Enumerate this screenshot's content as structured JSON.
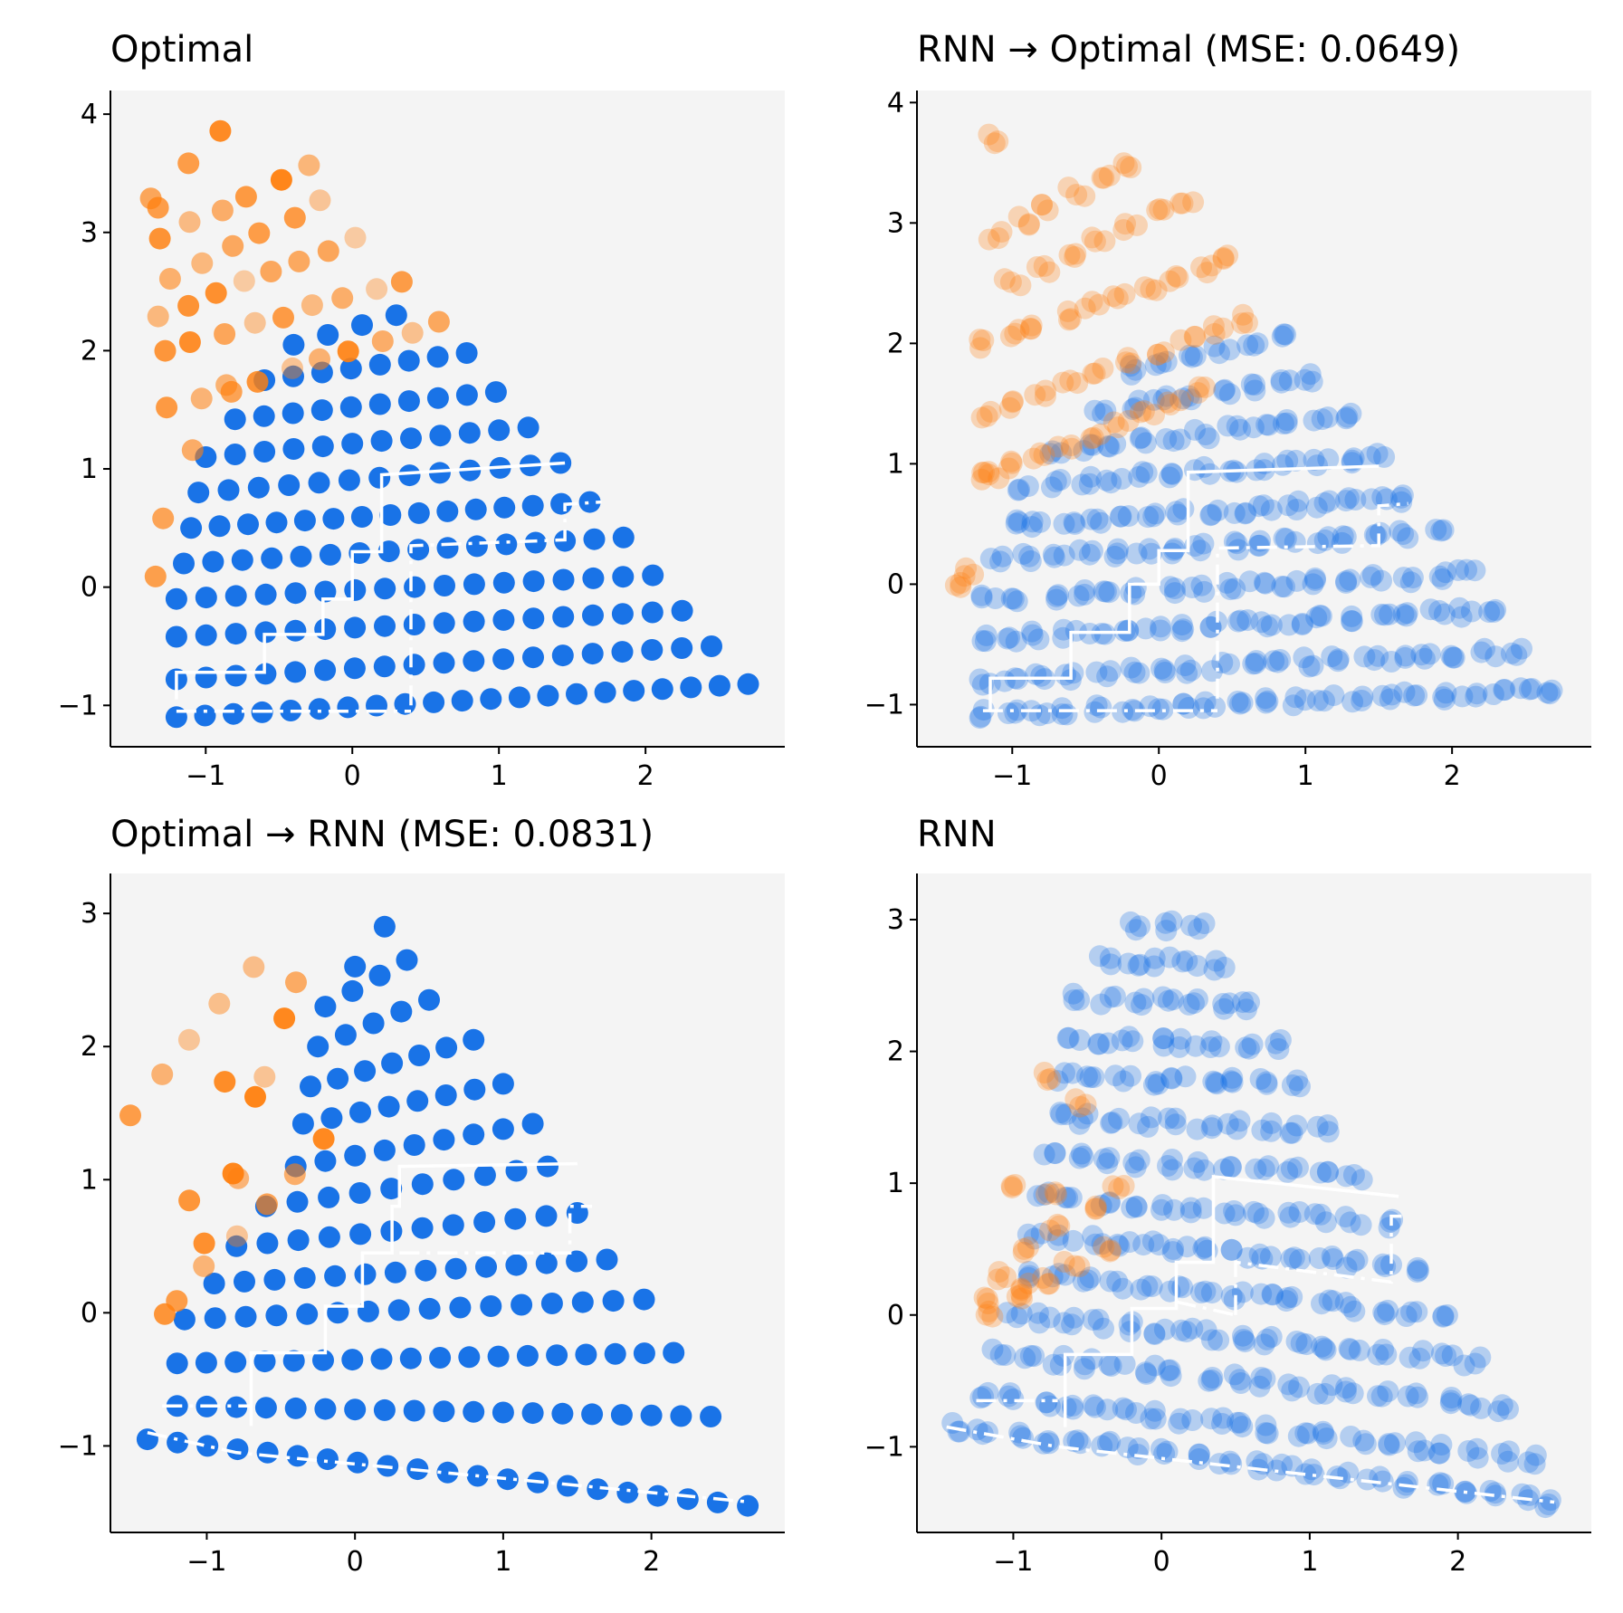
{
  "colors": {
    "orange": "#ff7f0e",
    "blue": "#0d6be6",
    "background": "#f4f4f4",
    "overlay": "#ffffff"
  },
  "chart_data": [
    {
      "type": "scatter",
      "title": "Optimal",
      "xlim": [
        -1.65,
        2.95
      ],
      "ylim": [
        -1.35,
        4.2
      ],
      "xticks": [
        -1,
        0,
        1,
        2
      ],
      "yticks": [
        -1,
        0,
        1,
        2,
        3,
        4
      ],
      "xtick_labels": [
        "−1",
        "0",
        "1",
        "2"
      ],
      "ytick_labels": [
        "−1",
        "0",
        "1",
        "2",
        "3",
        "4"
      ],
      "mode": "regular",
      "series": [
        {
          "name": "blue states",
          "color": "#0d6be6",
          "rows": [
            {
              "y0": -1.1,
              "y1": -0.82,
              "x0": -1.2,
              "x1": 2.7
            },
            {
              "y0": -0.78,
              "y1": -0.5,
              "x0": -1.2,
              "x1": 2.45
            },
            {
              "y0": -0.42,
              "y1": -0.2,
              "x0": -1.2,
              "x1": 2.25
            },
            {
              "y0": -0.1,
              "y1": 0.1,
              "x0": -1.2,
              "x1": 2.05
            },
            {
              "y0": 0.2,
              "y1": 0.42,
              "x0": -1.15,
              "x1": 1.85
            },
            {
              "y0": 0.5,
              "y1": 0.72,
              "x0": -1.1,
              "x1": 1.62
            },
            {
              "y0": 0.8,
              "y1": 1.05,
              "x0": -1.05,
              "x1": 1.42
            },
            {
              "y0": 1.1,
              "y1": 1.35,
              "x0": -1.0,
              "x1": 1.2
            },
            {
              "y0": 1.42,
              "y1": 1.65,
              "x0": -0.8,
              "x1": 0.98
            },
            {
              "y0": 1.75,
              "y1": 1.98,
              "x0": -0.6,
              "x1": 0.78
            },
            {
              "y0": 2.05,
              "y1": 2.3,
              "x0": -0.4,
              "x1": 0.3
            }
          ]
        },
        {
          "name": "orange states",
          "color": "#ff7f0e",
          "rows": [
            {
              "y0": 0.1,
              "y1": 3.2,
              "x0": -1.35,
              "x1": -1.35
            },
            {
              "y0": 1.5,
              "y1": 2.25,
              "x0": -1.25,
              "x1": 0.6
            },
            {
              "y0": 2.0,
              "y1": 2.6,
              "x0": -1.3,
              "x1": 0.35
            },
            {
              "y0": 2.3,
              "y1": 2.95,
              "x0": -1.3,
              "x1": 0.0
            },
            {
              "y0": 2.6,
              "y1": 3.25,
              "x0": -1.25,
              "x1": -0.2
            },
            {
              "y0": 2.95,
              "y1": 3.55,
              "x0": -1.3,
              "x1": -0.3
            },
            {
              "y0": 3.3,
              "y1": 3.85,
              "x0": -1.35,
              "x1": -0.9
            },
            {
              "y0": 0.6,
              "y1": 1.7,
              "x0": -1.3,
              "x1": -0.85
            }
          ]
        }
      ],
      "traces": [
        {
          "style": "solid",
          "points": [
            [
              -1.2,
              -0.95
            ],
            [
              -1.2,
              -0.72
            ],
            [
              -0.6,
              -0.72
            ],
            [
              -0.6,
              -0.4
            ],
            [
              -0.2,
              -0.4
            ],
            [
              -0.2,
              -0.1
            ],
            [
              0.0,
              -0.1
            ],
            [
              0.0,
              0.3
            ],
            [
              0.2,
              0.3
            ],
            [
              0.2,
              0.95
            ],
            [
              1.45,
              1.05
            ]
          ]
        },
        {
          "style": "dashdot",
          "points": [
            [
              -1.2,
              -1.05
            ],
            [
              0.4,
              -1.05
            ]
          ]
        },
        {
          "style": "dashdot",
          "points": [
            [
              0.4,
              -1.0
            ],
            [
              0.4,
              0.35
            ],
            [
              1.45,
              0.4
            ],
            [
              1.45,
              0.7
            ],
            [
              1.7,
              0.72
            ]
          ]
        }
      ]
    },
    {
      "type": "scatter",
      "title": "RNN → Optimal (MSE: 0.0649)",
      "xlim": [
        -1.65,
        2.95
      ],
      "ylim": [
        -1.35,
        4.1
      ],
      "xticks": [
        -1,
        0,
        1,
        2
      ],
      "yticks": [
        -1,
        0,
        1,
        2,
        3,
        4
      ],
      "xtick_labels": [
        "−1",
        "0",
        "1",
        "2"
      ],
      "ytick_labels": [
        "−1",
        "0",
        "1",
        "2",
        "3",
        "4"
      ],
      "mode": "smeared",
      "series": [
        {
          "name": "blue states",
          "color": "#0d6be6",
          "rows": [
            {
              "y0": -1.08,
              "y1": -0.88,
              "x0": -1.2,
              "x1": 2.7
            },
            {
              "y0": -0.8,
              "y1": -0.55,
              "x0": -1.2,
              "x1": 2.45
            },
            {
              "y0": -0.45,
              "y1": -0.22,
              "x0": -1.2,
              "x1": 2.3
            },
            {
              "y0": -0.12,
              "y1": 0.08,
              "x0": -1.15,
              "x1": 2.1
            },
            {
              "y0": 0.2,
              "y1": 0.42,
              "x0": -1.1,
              "x1": 1.9
            },
            {
              "y0": 0.5,
              "y1": 0.72,
              "x0": -1.0,
              "x1": 1.7
            },
            {
              "y0": 0.82,
              "y1": 1.05,
              "x0": -0.9,
              "x1": 1.5
            },
            {
              "y0": 1.12,
              "y1": 1.38,
              "x0": -0.7,
              "x1": 1.3
            },
            {
              "y0": 1.45,
              "y1": 1.72,
              "x0": -0.4,
              "x1": 1.05
            },
            {
              "y0": 1.78,
              "y1": 2.05,
              "x0": -0.2,
              "x1": 0.85
            }
          ]
        },
        {
          "name": "orange states",
          "color": "#ff7f0e",
          "rows": [
            {
              "y0": 0.1,
              "y1": 3.7,
              "x0": -1.3,
              "x1": -1.1
            },
            {
              "y0": 0.9,
              "y1": 1.6,
              "x0": -1.2,
              "x1": 0.3
            },
            {
              "y0": 1.4,
              "y1": 2.2,
              "x0": -1.2,
              "x1": 0.6
            },
            {
              "y0": 2.0,
              "y1": 2.7,
              "x0": -1.2,
              "x1": 0.5
            },
            {
              "y0": 2.5,
              "y1": 3.2,
              "x0": -1.0,
              "x1": 0.2
            },
            {
              "y0": 2.9,
              "y1": 3.5,
              "x0": -1.1,
              "x1": -0.2
            },
            {
              "y0": 0.0,
              "y1": 0.9,
              "x0": -1.35,
              "x1": -1.15
            }
          ]
        }
      ],
      "traces": [
        {
          "style": "solid",
          "points": [
            [
              -1.15,
              -1.05
            ],
            [
              -1.15,
              -0.78
            ],
            [
              -0.6,
              -0.78
            ],
            [
              -0.6,
              -0.4
            ],
            [
              -0.2,
              -0.4
            ],
            [
              -0.2,
              0.0
            ],
            [
              0.0,
              0.0
            ],
            [
              0.0,
              0.28
            ],
            [
              0.2,
              0.28
            ],
            [
              0.2,
              0.93
            ],
            [
              1.5,
              0.98
            ]
          ]
        },
        {
          "style": "dashdot",
          "points": [
            [
              -1.2,
              -1.05
            ],
            [
              0.4,
              -1.05
            ]
          ]
        },
        {
          "style": "dashdot",
          "points": [
            [
              0.4,
              -0.95
            ],
            [
              0.4,
              0.3
            ],
            [
              1.5,
              0.32
            ],
            [
              1.5,
              0.65
            ],
            [
              1.7,
              0.67
            ]
          ]
        }
      ]
    },
    {
      "type": "scatter",
      "title": "Optimal → RNN (MSE: 0.0831)",
      "xlim": [
        -1.65,
        2.9
      ],
      "ylim": [
        -1.65,
        3.3
      ],
      "xticks": [
        -1,
        0,
        1,
        2
      ],
      "yticks": [
        -1,
        0,
        1,
        2,
        3
      ],
      "xtick_labels": [
        "−1",
        "0",
        "1",
        "2"
      ],
      "ytick_labels": [
        "−1",
        "0",
        "1",
        "2",
        "3"
      ],
      "mode": "regular",
      "series": [
        {
          "name": "blue states",
          "color": "#0d6be6",
          "rows": [
            {
              "y0": -0.95,
              "y1": -1.45,
              "x0": -1.4,
              "x1": 2.65
            },
            {
              "y0": -0.7,
              "y1": -0.78,
              "x0": -1.2,
              "x1": 2.4
            },
            {
              "y0": -0.38,
              "y1": -0.3,
              "x0": -1.2,
              "x1": 2.15
            },
            {
              "y0": -0.05,
              "y1": 0.1,
              "x0": -1.15,
              "x1": 1.95
            },
            {
              "y0": 0.22,
              "y1": 0.4,
              "x0": -0.95,
              "x1": 1.7
            },
            {
              "y0": 0.5,
              "y1": 0.75,
              "x0": -0.8,
              "x1": 1.5
            },
            {
              "y0": 0.8,
              "y1": 1.1,
              "x0": -0.6,
              "x1": 1.3
            },
            {
              "y0": 1.1,
              "y1": 1.42,
              "x0": -0.4,
              "x1": 1.2
            },
            {
              "y0": 1.42,
              "y1": 1.72,
              "x0": -0.35,
              "x1": 1.0
            },
            {
              "y0": 1.7,
              "y1": 2.05,
              "x0": -0.3,
              "x1": 0.8
            },
            {
              "y0": 2.0,
              "y1": 2.35,
              "x0": -0.25,
              "x1": 0.5
            },
            {
              "y0": 2.3,
              "y1": 2.65,
              "x0": -0.2,
              "x1": 0.35
            },
            {
              "y0": 2.6,
              "y1": 2.9,
              "x0": 0.0,
              "x1": 0.2
            }
          ]
        },
        {
          "name": "orange states",
          "color": "#ff7f0e",
          "rows": [
            {
              "y0": 0.0,
              "y1": 2.6,
              "x0": -1.3,
              "x1": -0.7
            },
            {
              "y0": 0.5,
              "y1": 2.2,
              "x0": -1.0,
              "x1": -0.5
            },
            {
              "y0": 1.0,
              "y1": 2.5,
              "x0": -0.8,
              "x1": -0.4
            },
            {
              "y0": 0.1,
              "y1": 1.3,
              "x0": -1.2,
              "x1": -0.2
            },
            {
              "y0": 1.5,
              "y1": 2.3,
              "x0": -1.5,
              "x1": -0.9
            }
          ]
        }
      ],
      "traces": [
        {
          "style": "solid",
          "points": [
            [
              -0.7,
              -0.85
            ],
            [
              -0.7,
              -0.3
            ],
            [
              -0.2,
              -0.3
            ],
            [
              -0.2,
              0.05
            ],
            [
              0.05,
              0.05
            ],
            [
              0.05,
              0.45
            ],
            [
              0.25,
              0.45
            ],
            [
              0.25,
              0.8
            ],
            [
              0.3,
              0.8
            ],
            [
              0.3,
              1.1
            ],
            [
              1.5,
              1.12
            ]
          ]
        },
        {
          "style": "dashdot",
          "points": [
            [
              -1.4,
              -0.9
            ],
            [
              -0.8,
              -1.05
            ],
            [
              2.65,
              -1.42
            ]
          ]
        },
        {
          "style": "dashdot",
          "points": [
            [
              -1.3,
              -0.7
            ],
            [
              -0.7,
              -0.7
            ]
          ]
        },
        {
          "style": "dashdot",
          "points": [
            [
              0.3,
              0.45
            ],
            [
              1.45,
              0.45
            ],
            [
              1.45,
              0.8
            ],
            [
              1.6,
              0.8
            ]
          ]
        }
      ]
    },
    {
      "type": "scatter",
      "title": "RNN",
      "xlim": [
        -1.65,
        2.9
      ],
      "ylim": [
        -1.65,
        3.35
      ],
      "xticks": [
        -1,
        0,
        1,
        2
      ],
      "yticks": [
        -1,
        0,
        1,
        2,
        3
      ],
      "xtick_labels": [
        "−1",
        "0",
        "1",
        "2"
      ],
      "ytick_labels": [
        "−1",
        "0",
        "1",
        "2",
        "3"
      ],
      "mode": "smeared",
      "series": [
        {
          "name": "blue states",
          "color": "#0d6be6",
          "rows": [
            {
              "y0": -0.85,
              "y1": -1.42,
              "x0": -1.4,
              "x1": 2.65
            },
            {
              "y0": -0.6,
              "y1": -1.1,
              "x0": -1.2,
              "x1": 2.5
            },
            {
              "y0": -0.3,
              "y1": -0.7,
              "x0": -1.1,
              "x1": 2.3
            },
            {
              "y0": 0.0,
              "y1": -0.35,
              "x0": -1.0,
              "x1": 2.1
            },
            {
              "y0": 0.3,
              "y1": 0.0,
              "x0": -0.9,
              "x1": 1.9
            },
            {
              "y0": 0.6,
              "y1": 0.35,
              "x0": -0.85,
              "x1": 1.7
            },
            {
              "y0": 0.9,
              "y1": 0.7,
              "x0": -0.8,
              "x1": 1.5
            },
            {
              "y0": 1.2,
              "y1": 1.05,
              "x0": -0.75,
              "x1": 1.3
            },
            {
              "y0": 1.5,
              "y1": 1.4,
              "x0": -0.7,
              "x1": 1.1
            },
            {
              "y0": 1.8,
              "y1": 1.75,
              "x0": -0.65,
              "x1": 0.9
            },
            {
              "y0": 2.1,
              "y1": 2.05,
              "x0": -0.6,
              "x1": 0.75
            },
            {
              "y0": 2.4,
              "y1": 2.35,
              "x0": -0.55,
              "x1": 0.6
            },
            {
              "y0": 2.7,
              "y1": 2.65,
              "x0": -0.4,
              "x1": 0.4
            },
            {
              "y0": 2.95,
              "y1": 2.95,
              "x0": -0.2,
              "x1": 0.25
            }
          ]
        },
        {
          "name": "orange states",
          "color": "#ff7f0e",
          "rows": [
            {
              "y0": 0.1,
              "y1": 1.8,
              "x0": -1.2,
              "x1": -0.75
            },
            {
              "y0": 0.2,
              "y1": 1.6,
              "x0": -0.9,
              "x1": -0.55
            },
            {
              "y0": 0.3,
              "y1": 1.0,
              "x0": -1.1,
              "x1": -0.3
            },
            {
              "y0": 0.0,
              "y1": 0.5,
              "x0": -1.2,
              "x1": -0.4
            }
          ]
        }
      ],
      "traces": [
        {
          "style": "solid",
          "points": [
            [
              -0.65,
              -0.85
            ],
            [
              -0.65,
              -0.3
            ],
            [
              -0.2,
              -0.3
            ],
            [
              -0.2,
              0.05
            ],
            [
              0.1,
              0.05
            ],
            [
              0.1,
              0.4
            ],
            [
              0.35,
              0.4
            ],
            [
              0.35,
              1.05
            ],
            [
              1.6,
              0.9
            ]
          ]
        },
        {
          "style": "dashdot",
          "points": [
            [
              -1.45,
              -0.85
            ],
            [
              -0.7,
              -1.0
            ],
            [
              2.65,
              -1.42
            ]
          ]
        },
        {
          "style": "dashdot",
          "points": [
            [
              -1.25,
              -0.65
            ],
            [
              -0.7,
              -0.65
            ]
          ]
        },
        {
          "style": "dashdot",
          "points": [
            [
              0.1,
              0.1
            ],
            [
              0.5,
              0.0
            ]
          ]
        },
        {
          "style": "dashdot",
          "points": [
            [
              0.5,
              0.0
            ],
            [
              0.5,
              0.4
            ],
            [
              1.55,
              0.25
            ],
            [
              1.55,
              0.75
            ],
            [
              1.65,
              0.75
            ]
          ]
        }
      ]
    }
  ]
}
